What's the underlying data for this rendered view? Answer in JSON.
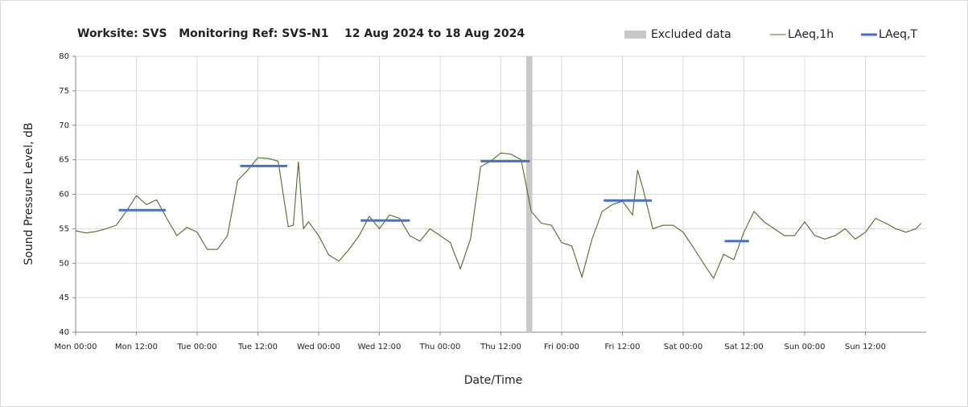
{
  "chart_data": {
    "type": "line",
    "title": "Worksite: SVS   Monitoring Ref: SVS-N1    12 Aug 2024 to 18 Aug 2024",
    "x_label": "Date/Time",
    "y_label": "Sound Pressure Level, dB",
    "xlim": [
      0,
      168
    ],
    "xticks": [
      {
        "value": 0,
        "label": "Mon 00:00"
      },
      {
        "value": 12,
        "label": "Mon 12:00"
      },
      {
        "value": 24,
        "label": "Tue 00:00"
      },
      {
        "value": 36,
        "label": "Tue 12:00"
      },
      {
        "value": 48,
        "label": "Wed 00:00"
      },
      {
        "value": 60,
        "label": "Wed 12:00"
      },
      {
        "value": 72,
        "label": "Thu 00:00"
      },
      {
        "value": 84,
        "label": "Thu 12:00"
      },
      {
        "value": 96,
        "label": "Fri 00:00"
      },
      {
        "value": 108,
        "label": "Fri 12:00"
      },
      {
        "value": 120,
        "label": "Sat 00:00"
      },
      {
        "value": 132,
        "label": "Sat 12:00"
      },
      {
        "value": 144,
        "label": "Sun 00:00"
      },
      {
        "value": 156,
        "label": "Sun 12:00"
      }
    ],
    "ylim": [
      40,
      80
    ],
    "yticks": [
      40,
      45,
      50,
      55,
      60,
      65,
      70,
      75,
      80
    ],
    "grid": true,
    "legend": "top-right",
    "excluded": {
      "name": "Excluded data",
      "color": "#c8c8c8",
      "x": [
        89,
        90.2
      ]
    },
    "series": [
      {
        "name": "LAeq,1h",
        "color": "#4f6a2c",
        "x": [
          0,
          2,
          4,
          6,
          8,
          10,
          12,
          14,
          16,
          18,
          20,
          22,
          24,
          26,
          28,
          30,
          32,
          34,
          36,
          38,
          40,
          42,
          43,
          44,
          45,
          46,
          48,
          50,
          52,
          54,
          56,
          58,
          60,
          62,
          64,
          66,
          68,
          70,
          72,
          74,
          76,
          78,
          80,
          82,
          84,
          86,
          88,
          90,
          92,
          94,
          96,
          98,
          100,
          102,
          104,
          106,
          108,
          110,
          111,
          112,
          114,
          116,
          118,
          120,
          122,
          124,
          126,
          128,
          130,
          132,
          134,
          136,
          138,
          140,
          142,
          144,
          146,
          148,
          150,
          152,
          154,
          156,
          158,
          160,
          162,
          164,
          166,
          167
        ],
        "values": [
          54.7,
          54.4,
          54.6,
          55.0,
          55.5,
          57.5,
          59.8,
          58.5,
          59.2,
          56.5,
          54.0,
          55.2,
          54.5,
          52.0,
          52.0,
          54.0,
          62.0,
          63.5,
          65.3,
          65.2,
          64.8,
          55.3,
          55.5,
          64.7,
          55.0,
          56.0,
          54.0,
          51.2,
          50.3,
          52.0,
          54.0,
          56.8,
          55.0,
          57.0,
          56.5,
          54.0,
          53.2,
          55.0,
          54.0,
          53.0,
          49.2,
          53.5,
          64.0,
          64.8,
          66.0,
          65.8,
          65.0,
          57.5,
          55.8,
          55.5,
          53.0,
          52.5,
          48.0,
          53.5,
          57.5,
          58.5,
          59.0,
          57.0,
          63.5,
          61.0,
          55.0,
          55.5,
          55.5,
          54.5,
          52.3,
          50.0,
          47.8,
          51.3,
          50.5,
          54.5,
          57.5,
          56.0,
          55.0,
          54.0,
          54.0,
          56.0,
          54.0,
          53.5,
          54.0,
          55.0,
          53.5,
          54.5,
          56.5,
          55.8,
          55.0,
          54.5,
          55.0,
          55.8
        ]
      },
      {
        "name": "LAeq,T",
        "color": "#4472c4",
        "segments": [
          {
            "x": [
              8.5,
              17.8
            ],
            "value": 57.7
          },
          {
            "x": [
              32.5,
              41.8
            ],
            "value": 64.1
          },
          {
            "x": [
              56.3,
              66
            ],
            "value": 56.2
          },
          {
            "x": [
              80,
              89.7
            ],
            "value": 64.8
          },
          {
            "x": [
              104.3,
              113.8
            ],
            "value": 59.1
          },
          {
            "x": [
              128.2,
              133
            ],
            "value": 53.2
          }
        ]
      }
    ]
  }
}
